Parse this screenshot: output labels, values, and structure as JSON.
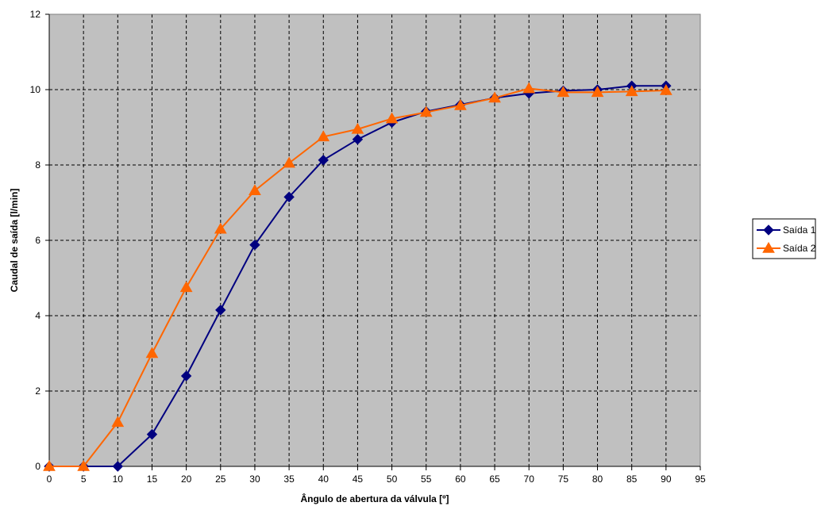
{
  "chart_data": {
    "type": "line",
    "title": "",
    "xlabel": "Ângulo de abertura da válvula [º]",
    "ylabel": "Caudal de saída [l/min]",
    "xlim": [
      0,
      95
    ],
    "ylim": [
      0,
      12
    ],
    "xticks": [
      0,
      5,
      10,
      15,
      20,
      25,
      30,
      35,
      40,
      45,
      50,
      55,
      60,
      65,
      70,
      75,
      80,
      85,
      90,
      95
    ],
    "yticks": [
      0,
      2,
      4,
      6,
      8,
      10,
      12
    ],
    "grid": true,
    "plot_background": "#c0c0c0",
    "legend_position": "right",
    "x": [
      0,
      5,
      10,
      15,
      20,
      25,
      30,
      35,
      40,
      45,
      50,
      55,
      60,
      65,
      70,
      75,
      80,
      85,
      90
    ],
    "series": [
      {
        "name": "Saída 1",
        "color": "#000080",
        "marker": "diamond",
        "values": [
          0,
          0,
          0,
          0.85,
          2.4,
          4.15,
          5.88,
          7.15,
          8.13,
          8.68,
          9.13,
          9.42,
          9.6,
          9.78,
          9.9,
          9.97,
          10.0,
          10.1,
          10.1
        ]
      },
      {
        "name": "Saída 2",
        "color": "#ff6600",
        "marker": "triangle",
        "values": [
          0,
          0,
          1.17,
          3.0,
          4.75,
          6.3,
          7.32,
          8.05,
          8.75,
          8.95,
          9.23,
          9.4,
          9.58,
          9.78,
          10.03,
          9.93,
          9.93,
          9.95,
          9.98
        ]
      }
    ]
  }
}
